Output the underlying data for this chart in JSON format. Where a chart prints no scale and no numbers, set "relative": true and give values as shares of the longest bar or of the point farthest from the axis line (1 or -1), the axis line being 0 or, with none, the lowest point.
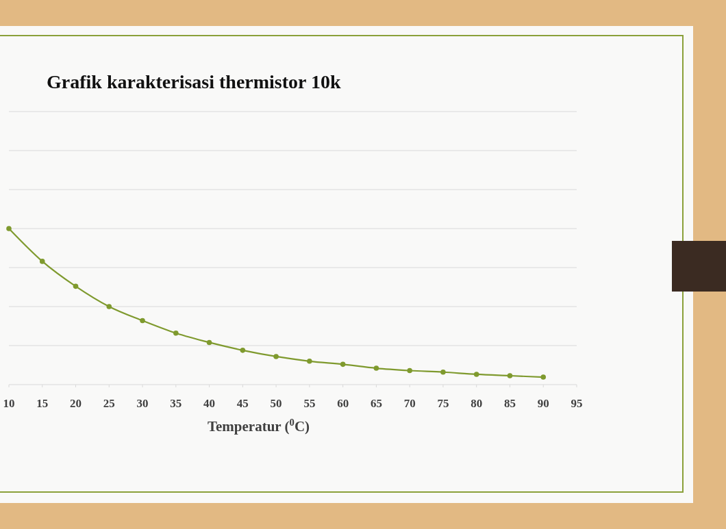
{
  "chart_data": {
    "type": "line",
    "title": "Grafik karakterisasi thermistor 10k",
    "xlabel": "Temperatur ($^{0}$C)",
    "relative": true,
    "grid": true,
    "marker": "circle",
    "line_style": "solid",
    "x": [
      10,
      15,
      20,
      25,
      30,
      35,
      40,
      45,
      50,
      55,
      60,
      65,
      70,
      75,
      80,
      85,
      90
    ],
    "xlim": [
      10,
      95
    ],
    "xticks": [
      10,
      15,
      20,
      25,
      30,
      35,
      40,
      45,
      50,
      55,
      60,
      65,
      70,
      75,
      80,
      85,
      90,
      95
    ],
    "series": [
      {
        "color": "#7f9a2e",
        "values": [
          1,
          0.79,
          0.63,
          0.5,
          0.41,
          0.33,
          0.27,
          0.22,
          0.18,
          0.15,
          0.13,
          0.105,
          0.09,
          0.08,
          0.066,
          0.057,
          0.048
        ]
      }
    ]
  }
}
